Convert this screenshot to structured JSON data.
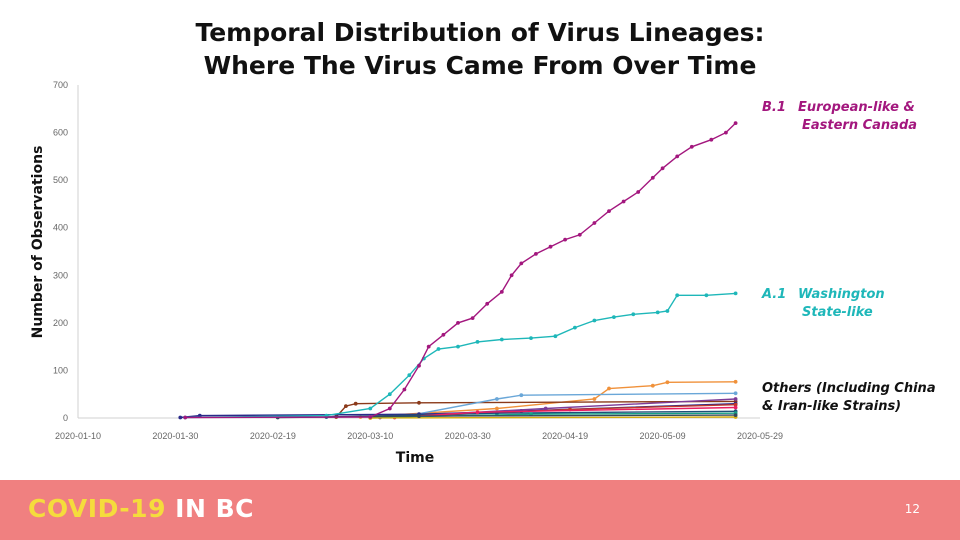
{
  "title": {
    "line1": "Temporal Distribution of Virus Lineages:",
    "line2": "Where The Virus Came From Over Time"
  },
  "footer": {
    "brand_part1": "COVID-19",
    "brand_part2": " IN BC",
    "page_number": "12"
  },
  "colors": {
    "b1": "#a3177e",
    "a1": "#1eb7b9",
    "orange": "#f0913a",
    "brown": "#8b3a1a",
    "axis": "#d0d0d0",
    "footer_bg": "#f08080",
    "brand_yellow": "#f5dc3c"
  },
  "chart_data": {
    "type": "line",
    "xlabel": "Time",
    "ylabel": "Number of Observations",
    "xlim": [
      "2020-01-10",
      "2020-05-29"
    ],
    "ylim": [
      0,
      700
    ],
    "x_ticks": [
      "2020-01-10",
      "2020-01-30",
      "2020-02-19",
      "2020-03-10",
      "2020-03-30",
      "2020-04-19",
      "2020-05-09",
      "2020-05-29"
    ],
    "y_ticks": [
      0,
      100,
      200,
      300,
      400,
      500,
      600,
      700
    ],
    "grid": false,
    "series": [
      {
        "label_lineage": "B.1",
        "label_desc_line1": "European-like &",
        "label_desc_line2": "Eastern Canada",
        "color": "#a3177e",
        "points": [
          [
            "2020-02-01",
            1
          ],
          [
            "2020-03-10",
            2
          ],
          [
            "2020-03-14",
            20
          ],
          [
            "2020-03-17",
            60
          ],
          [
            "2020-03-20",
            110
          ],
          [
            "2020-03-22",
            150
          ],
          [
            "2020-03-25",
            175
          ],
          [
            "2020-03-28",
            200
          ],
          [
            "2020-03-31",
            210
          ],
          [
            "2020-04-03",
            240
          ],
          [
            "2020-04-06",
            265
          ],
          [
            "2020-04-08",
            300
          ],
          [
            "2020-04-10",
            325
          ],
          [
            "2020-04-13",
            345
          ],
          [
            "2020-04-16",
            360
          ],
          [
            "2020-04-19",
            375
          ],
          [
            "2020-04-22",
            385
          ],
          [
            "2020-04-25",
            410
          ],
          [
            "2020-04-28",
            435
          ],
          [
            "2020-05-01",
            455
          ],
          [
            "2020-05-04",
            475
          ],
          [
            "2020-05-07",
            505
          ],
          [
            "2020-05-09",
            525
          ],
          [
            "2020-05-12",
            550
          ],
          [
            "2020-05-15",
            570
          ],
          [
            "2020-05-19",
            585
          ],
          [
            "2020-05-22",
            600
          ],
          [
            "2020-05-24",
            620
          ]
        ]
      },
      {
        "label_lineage": "A.1",
        "label_desc_line1": "Washington",
        "label_desc_line2": "State-like",
        "color": "#1eb7b9",
        "points": [
          [
            "2020-02-01",
            1
          ],
          [
            "2020-03-01",
            5
          ],
          [
            "2020-03-10",
            20
          ],
          [
            "2020-03-14",
            50
          ],
          [
            "2020-03-18",
            90
          ],
          [
            "2020-03-21",
            125
          ],
          [
            "2020-03-24",
            145
          ],
          [
            "2020-03-28",
            150
          ],
          [
            "2020-04-01",
            160
          ],
          [
            "2020-04-06",
            165
          ],
          [
            "2020-04-12",
            168
          ],
          [
            "2020-04-17",
            172
          ],
          [
            "2020-04-21",
            190
          ],
          [
            "2020-04-25",
            205
          ],
          [
            "2020-04-29",
            212
          ],
          [
            "2020-05-03",
            218
          ],
          [
            "2020-05-08",
            222
          ],
          [
            "2020-05-10",
            225
          ],
          [
            "2020-05-12",
            258
          ],
          [
            "2020-05-18",
            258
          ],
          [
            "2020-05-24",
            262
          ]
        ]
      },
      {
        "label_lineage": "",
        "label_desc_line1": "Others (Including China",
        "label_desc_line2": "& Iran-like Strains)",
        "color": "#111111",
        "points": []
      }
    ],
    "other_lines": [
      {
        "color": "#f0913a",
        "points": [
          [
            "2020-03-08",
            2
          ],
          [
            "2020-04-05",
            20
          ],
          [
            "2020-04-25",
            40
          ],
          [
            "2020-04-28",
            62
          ],
          [
            "2020-05-07",
            68
          ],
          [
            "2020-05-10",
            75
          ],
          [
            "2020-05-24",
            76
          ]
        ]
      },
      {
        "color": "#8b3a1a",
        "points": [
          [
            "2020-03-03",
            2
          ],
          [
            "2020-03-05",
            25
          ],
          [
            "2020-03-07",
            30
          ],
          [
            "2020-03-20",
            32
          ],
          [
            "2020-05-24",
            35
          ]
        ]
      },
      {
        "color": "#6aa7d8",
        "points": [
          [
            "2020-03-18",
            5
          ],
          [
            "2020-04-05",
            40
          ],
          [
            "2020-04-10",
            48
          ],
          [
            "2020-05-24",
            52
          ]
        ]
      },
      {
        "color": "#2a2a8a",
        "points": [
          [
            "2020-01-31",
            1
          ],
          [
            "2020-02-04",
            5
          ],
          [
            "2020-03-20",
            8
          ],
          [
            "2020-04-10",
            15
          ],
          [
            "2020-05-24",
            30
          ]
        ]
      },
      {
        "color": "#c0392b",
        "points": [
          [
            "2020-03-15",
            2
          ],
          [
            "2020-04-20",
            18
          ],
          [
            "2020-05-24",
            28
          ]
        ]
      },
      {
        "color": "#7d3c98",
        "points": [
          [
            "2020-03-12",
            1
          ],
          [
            "2020-04-15",
            20
          ],
          [
            "2020-05-24",
            40
          ]
        ]
      },
      {
        "color": "#1f4e79",
        "points": [
          [
            "2020-03-01",
            2
          ],
          [
            "2020-04-05",
            10
          ],
          [
            "2020-05-24",
            14
          ]
        ]
      },
      {
        "color": "#e91e63",
        "points": [
          [
            "2020-03-15",
            1
          ],
          [
            "2020-04-01",
            12
          ],
          [
            "2020-05-24",
            22
          ]
        ]
      },
      {
        "color": "#16a085",
        "points": [
          [
            "2020-03-10",
            1
          ],
          [
            "2020-04-12",
            8
          ],
          [
            "2020-05-24",
            10
          ]
        ]
      },
      {
        "color": "#d4ac0d",
        "points": [
          [
            "2020-03-10",
            0
          ],
          [
            "2020-05-24",
            2
          ]
        ]
      },
      {
        "color": "#34495e",
        "points": [
          [
            "2020-02-20",
            1
          ],
          [
            "2020-03-20",
            4
          ],
          [
            "2020-05-24",
            6
          ]
        ]
      }
    ]
  }
}
